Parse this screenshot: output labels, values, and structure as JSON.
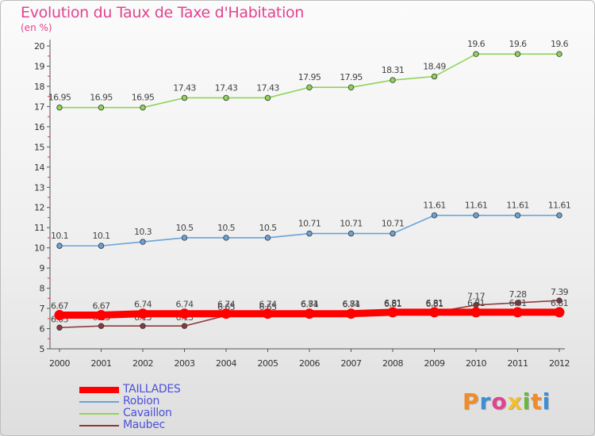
{
  "title": "Evolution du Taux de Taxe d'Habitation",
  "unit_label": "(en %)",
  "brand": "Proxiti",
  "chart_data": {
    "type": "line",
    "title": "Evolution du Taux de Taxe d'Habitation",
    "ylabel": "(en %)",
    "xlabel": "",
    "x": [
      "2000",
      "2001",
      "2002",
      "2003",
      "2004",
      "2005",
      "2006",
      "2007",
      "2008",
      "2009",
      "2010",
      "2011",
      "2012"
    ],
    "ylim": [
      5,
      20
    ],
    "yticks": [
      "5",
      "6",
      "7",
      "8",
      "9",
      "10",
      "11",
      "12",
      "13",
      "14",
      "15",
      "16",
      "17",
      "18",
      "19",
      "20"
    ],
    "grid": false,
    "legend_position": "bottom-left",
    "series": [
      {
        "name": "TAILLADES",
        "color": "#ff0000",
        "values": [
          6.67,
          6.67,
          6.74,
          6.74,
          6.74,
          6.74,
          6.74,
          6.74,
          6.81,
          6.81,
          6.81,
          6.81,
          6.81
        ],
        "labels": [
          "6.67",
          "6.67",
          "6.74",
          "6.74",
          "6.74",
          "6.74",
          "6.74",
          "6.74",
          "6.81",
          "6.81",
          "6.81",
          "6.81",
          "6.81"
        ]
      },
      {
        "name": "Robion",
        "color": "#6aa3d8",
        "values": [
          10.1,
          10.1,
          10.3,
          10.5,
          10.5,
          10.5,
          10.71,
          10.71,
          10.71,
          11.61,
          11.61,
          11.61,
          11.61
        ],
        "labels": [
          "10.1",
          "10.1",
          "10.3",
          "10.5",
          "10.5",
          "10.5",
          "10.71",
          "10.71",
          "10.71",
          "11.61",
          "11.61",
          "11.61",
          "11.61"
        ]
      },
      {
        "name": "Cavaillon",
        "color": "#8fd45a",
        "values": [
          16.95,
          16.95,
          16.95,
          17.43,
          17.43,
          17.43,
          17.95,
          17.95,
          18.31,
          18.49,
          19.6,
          19.6,
          19.6
        ],
        "labels": [
          "16.95",
          "16.95",
          "16.95",
          "17.43",
          "17.43",
          "17.43",
          "17.95",
          "17.95",
          "18.31",
          "18.49",
          "19.6",
          "19.6",
          "19.6"
        ]
      },
      {
        "name": "Maubec",
        "color": "#8a3a3a",
        "values": [
          6.05,
          6.13,
          6.13,
          6.13,
          6.65,
          6.65,
          6.81,
          6.81,
          6.81,
          6.81,
          7.17,
          7.28,
          7.39
        ],
        "labels": [
          "6.05",
          "6.13",
          "6.13",
          "6.13",
          "6.65",
          "6.65",
          "6.81",
          "6.81",
          "6.81",
          "6.81",
          "7.17",
          "7.28",
          "7.39"
        ]
      }
    ]
  }
}
